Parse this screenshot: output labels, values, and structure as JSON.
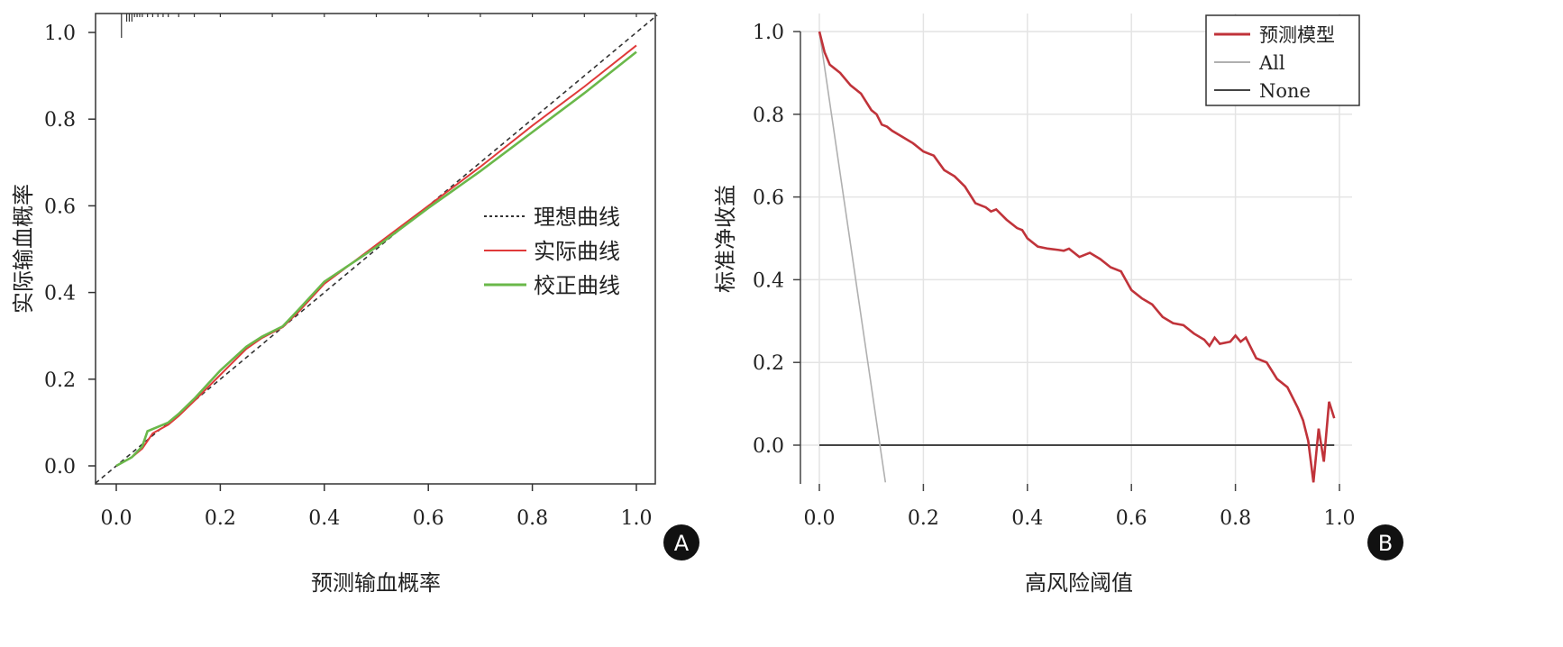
{
  "chart_data": [
    {
      "panel": "A",
      "type": "line",
      "xlabel": "预测输血概率",
      "ylabel": "实际输血概率",
      "xlim": [
        -0.04,
        1.04
      ],
      "ylim": [
        -0.04,
        1.04
      ],
      "xticks": [
        "0.0",
        "0.2",
        "0.4",
        "0.6",
        "0.8",
        "1.0"
      ],
      "yticks": [
        "0.0",
        "0.2",
        "0.4",
        "0.6",
        "0.8",
        "1.0"
      ],
      "grid": false,
      "legend_position": "right-center",
      "series": [
        {
          "name": "理想曲线",
          "style": "dotted",
          "color": "#333333",
          "x": [
            -0.04,
            1.04
          ],
          "y": [
            -0.04,
            1.04
          ]
        },
        {
          "name": "实际曲线",
          "style": "solid",
          "color": "#e03a3a",
          "x": [
            0,
            0.03,
            0.05,
            0.07,
            0.1,
            0.12,
            0.15,
            0.2,
            0.25,
            0.28,
            0.32,
            0.35,
            0.4,
            0.45,
            0.5,
            0.6,
            0.7,
            0.8,
            0.9,
            1.0
          ],
          "y": [
            0,
            0.02,
            0.04,
            0.075,
            0.095,
            0.115,
            0.15,
            0.21,
            0.27,
            0.295,
            0.32,
            0.355,
            0.42,
            0.465,
            0.51,
            0.6,
            0.69,
            0.785,
            0.875,
            0.97
          ]
        },
        {
          "name": "校正曲线",
          "style": "solid",
          "color": "#6ab84a",
          "x": [
            0,
            0.03,
            0.05,
            0.06,
            0.1,
            0.12,
            0.15,
            0.2,
            0.25,
            0.28,
            0.32,
            0.35,
            0.4,
            0.45,
            0.5,
            0.6,
            0.7,
            0.8,
            0.9,
            1.0
          ],
          "y": [
            0,
            0.02,
            0.045,
            0.08,
            0.1,
            0.12,
            0.155,
            0.22,
            0.275,
            0.298,
            0.322,
            0.36,
            0.425,
            0.465,
            0.505,
            0.595,
            0.68,
            0.77,
            0.86,
            0.955
          ]
        }
      ],
      "rug_x": [
        0.01,
        0.02,
        0.025,
        0.03,
        0.035,
        0.04,
        0.045,
        0.05,
        0.06,
        0.07,
        0.08,
        0.09,
        0.1,
        0.12,
        0.15,
        0.2,
        0.3,
        0.4,
        0.5,
        0.6,
        0.7,
        0.8,
        0.9,
        1.0
      ],
      "badge": "A"
    },
    {
      "panel": "B",
      "type": "line",
      "xlabel": "高风险阈值",
      "ylabel": "标准净收益",
      "xlim": [
        -0.035,
        1.035
      ],
      "ylim": [
        -0.09,
        1.04
      ],
      "xticks": [
        "0.0",
        "0.2",
        "0.4",
        "0.6",
        "0.8",
        "1.0"
      ],
      "yticks": [
        "0.0",
        "0.2",
        "0.4",
        "0.6",
        "0.8",
        "1.0"
      ],
      "grid": true,
      "legend_position": "top-right",
      "series": [
        {
          "name": "预测模型",
          "color": "#c0333a",
          "x": [
            0,
            0.01,
            0.02,
            0.03,
            0.04,
            0.06,
            0.08,
            0.1,
            0.11,
            0.12,
            0.13,
            0.14,
            0.16,
            0.18,
            0.2,
            0.21,
            0.22,
            0.24,
            0.26,
            0.28,
            0.3,
            0.31,
            0.32,
            0.33,
            0.34,
            0.36,
            0.38,
            0.39,
            0.4,
            0.42,
            0.44,
            0.46,
            0.47,
            0.48,
            0.5,
            0.52,
            0.54,
            0.56,
            0.58,
            0.6,
            0.62,
            0.64,
            0.66,
            0.68,
            0.7,
            0.72,
            0.74,
            0.75,
            0.76,
            0.77,
            0.79,
            0.8,
            0.81,
            0.82,
            0.84,
            0.86,
            0.88,
            0.9,
            0.92,
            0.93,
            0.94,
            0.95,
            0.96,
            0.97,
            0.98,
            0.99
          ],
          "y": [
            1.0,
            0.95,
            0.92,
            0.91,
            0.9,
            0.87,
            0.85,
            0.81,
            0.8,
            0.775,
            0.77,
            0.76,
            0.745,
            0.73,
            0.71,
            0.705,
            0.7,
            0.665,
            0.65,
            0.625,
            0.585,
            0.58,
            0.575,
            0.565,
            0.57,
            0.545,
            0.525,
            0.52,
            0.5,
            0.48,
            0.475,
            0.472,
            0.47,
            0.475,
            0.455,
            0.465,
            0.45,
            0.43,
            0.42,
            0.375,
            0.355,
            0.34,
            0.31,
            0.295,
            0.29,
            0.27,
            0.255,
            0.24,
            0.26,
            0.245,
            0.25,
            0.265,
            0.25,
            0.26,
            0.21,
            0.2,
            0.16,
            0.14,
            0.09,
            0.06,
            0.01,
            -0.09,
            0.04,
            -0.04,
            0.105,
            0.065
          ]
        },
        {
          "name": "All",
          "color": "#b0b0b0",
          "x": [
            0,
            0.127
          ],
          "y": [
            1.0,
            -0.09
          ]
        },
        {
          "name": "None",
          "color": "#444444",
          "x": [
            0,
            0.99
          ],
          "y": [
            0,
            0
          ]
        }
      ],
      "badge": "B"
    }
  ]
}
